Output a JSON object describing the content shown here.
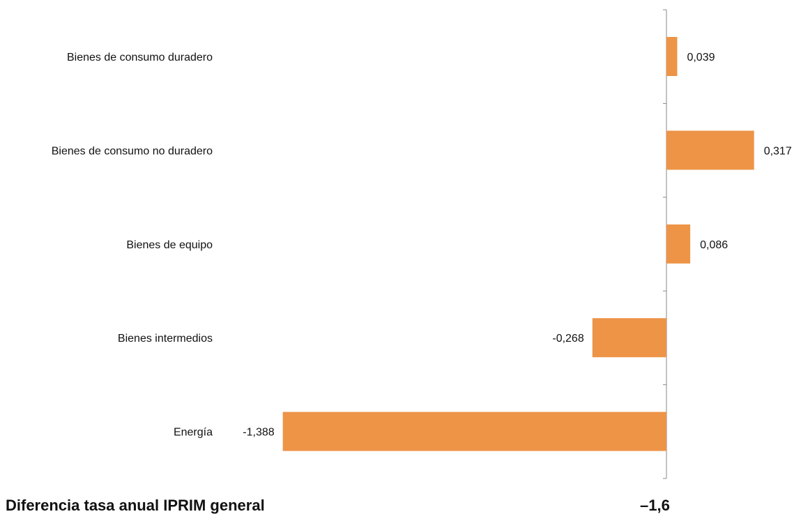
{
  "chart_data": {
    "type": "bar",
    "orientation": "horizontal",
    "categories": [
      "Bienes de consumo duradero",
      "Bienes de consumo no duradero",
      "Bienes de equipo",
      "Bienes intermedios",
      "Energía"
    ],
    "values": [
      0.039,
      0.317,
      0.086,
      -0.268,
      -1.388
    ],
    "value_labels": [
      "0,039",
      "0,317",
      "0,086",
      "-0,268",
      "-1,388"
    ],
    "xlim": [
      -1.4,
      0.4
    ],
    "bar_color": "#ED9447",
    "axis_color": "#888888",
    "grid": false,
    "title": "",
    "xlabel": "",
    "ylabel": ""
  },
  "footer": {
    "label": "Diferencia tasa anual IPRIM general",
    "value": "–1,6"
  }
}
